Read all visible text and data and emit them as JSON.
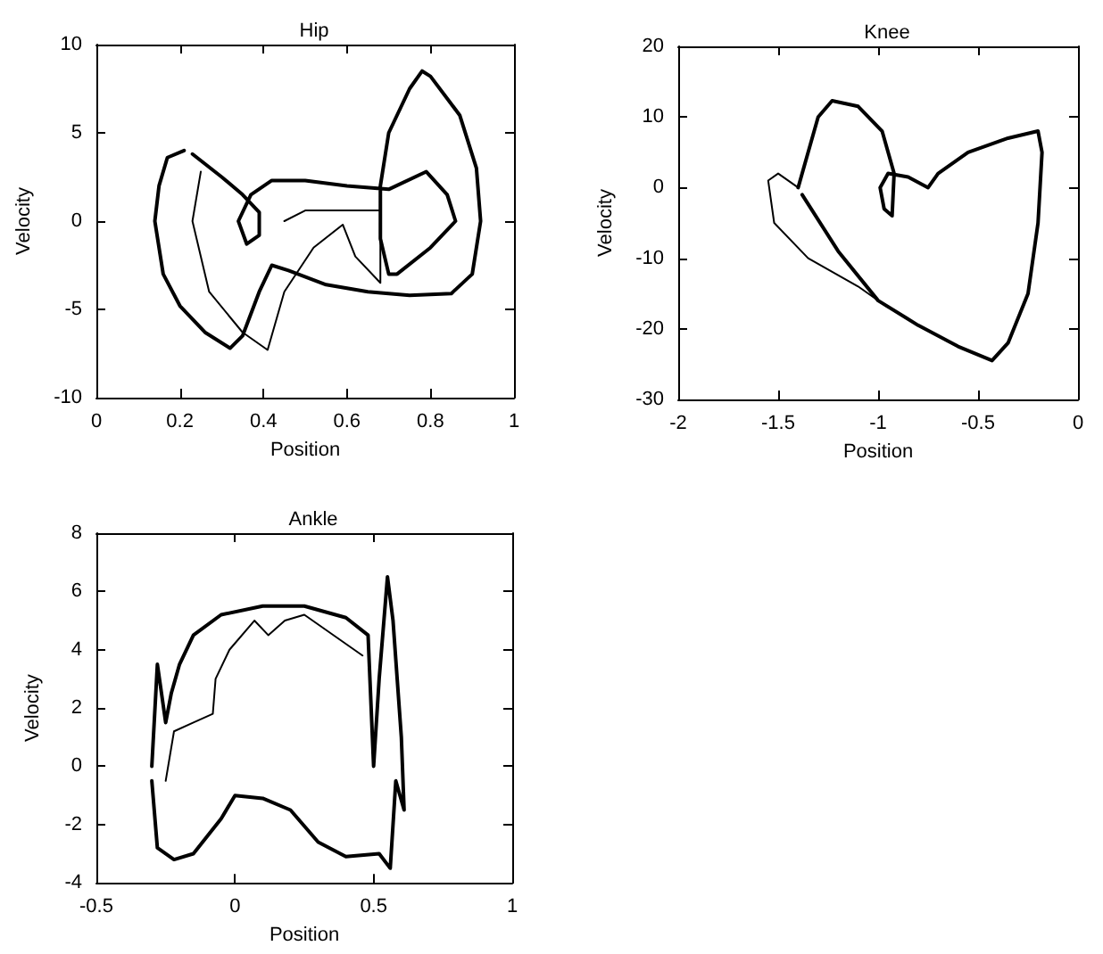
{
  "chart_data": [
    {
      "type": "line",
      "title": "Hip",
      "xlabel": "Position",
      "ylabel": "Velocity",
      "xlim": [
        0,
        1
      ],
      "xticks": [
        0,
        0.2,
        0.4,
        0.6,
        0.8,
        1
      ],
      "ylim": [
        -10,
        10
      ],
      "yticks": [
        -10,
        -5,
        0,
        5,
        10
      ],
      "grid": false,
      "marker": "none",
      "line_style": "solid",
      "series": [
        {
          "color": "#000000",
          "x": [
            0.21,
            0.17,
            0.15,
            0.14,
            0.16,
            0.2,
            0.26,
            0.32,
            0.35,
            0.39,
            0.42,
            0.46,
            0.55,
            0.65,
            0.75,
            0.85,
            0.9,
            0.92,
            0.91,
            0.87,
            0.8,
            0.78,
            0.75,
            0.7,
            0.68,
            0.68,
            0.7,
            0.72,
            0.8,
            0.86,
            0.84,
            0.79,
            0.7,
            0.6,
            0.5,
            0.42,
            0.37,
            0.34,
            0.36,
            0.39,
            0.39,
            0.35,
            0.3,
            0.23
          ],
          "values": [
            4,
            3.6,
            2,
            0,
            -3,
            -4.8,
            -6.3,
            -7.2,
            -6.5,
            -4,
            -2.5,
            -2.8,
            -3.6,
            -4,
            -4.2,
            -4.1,
            -3,
            0,
            3,
            6,
            8.2,
            8.5,
            7.5,
            5,
            2,
            -1,
            -3,
            -3,
            -1.5,
            0,
            1.5,
            2.8,
            1.8,
            2,
            2.3,
            2.3,
            1.5,
            0,
            -1.3,
            -0.8,
            0.5,
            1.5,
            2.5,
            3.8
          ]
        },
        {
          "color": "#000000",
          "x": [
            0.25,
            0.23,
            0.27,
            0.35,
            0.41,
            0.45,
            0.52,
            0.59,
            0.62,
            0.68,
            0.68,
            0.5,
            0.45
          ],
          "values": [
            2.8,
            0,
            -4,
            -6.3,
            -7.3,
            -4,
            -1.5,
            -0.2,
            -2,
            -3.5,
            0.6,
            0.6,
            0
          ]
        }
      ]
    },
    {
      "type": "line",
      "title": "Knee",
      "xlabel": "Position",
      "ylabel": "Velocity",
      "xlim": [
        -2,
        0
      ],
      "xticks": [
        -2,
        -1.5,
        -1,
        -0.5,
        0
      ],
      "ylim": [
        -30,
        20
      ],
      "yticks": [
        -30,
        -20,
        -10,
        0,
        10,
        20
      ],
      "grid": false,
      "marker": "none",
      "line_style": "solid",
      "series": [
        {
          "color": "#000000",
          "x": [
            -1.4,
            -1.35,
            -1.3,
            -1.23,
            -1.1,
            -0.98,
            -0.92,
            -0.93,
            -0.97,
            -0.99,
            -0.95,
            -0.85,
            -0.75,
            -0.7,
            -0.55,
            -0.35,
            -0.2,
            -0.18,
            -0.2,
            -0.25,
            -0.35,
            -0.43,
            -0.6,
            -0.8,
            -1,
            -1.2,
            -1.38
          ],
          "values": [
            0,
            5,
            10,
            12.3,
            11.5,
            8,
            2,
            -4,
            -3,
            0,
            2,
            1.5,
            0,
            2,
            5,
            7,
            8,
            5,
            -5,
            -15,
            -22,
            -24.5,
            -22.5,
            -19.5,
            -16,
            -9,
            -1
          ]
        },
        {
          "color": "#000000",
          "x": [
            -1.4,
            -1.5,
            -1.55,
            -1.52,
            -1.35,
            -1.1,
            -0.95
          ],
          "values": [
            0,
            2,
            1,
            -5,
            -10,
            -14,
            -17
          ]
        }
      ]
    },
    {
      "type": "line",
      "title": "Ankle",
      "xlabel": "Position",
      "ylabel": "Velocity",
      "xlim": [
        -0.5,
        1
      ],
      "xticks": [
        -0.5,
        0,
        0.5,
        1
      ],
      "ylim": [
        -4,
        8
      ],
      "yticks": [
        -4,
        -2,
        0,
        2,
        4,
        6,
        8
      ],
      "grid": false,
      "marker": "none",
      "line_style": "solid",
      "series": [
        {
          "color": "#000000",
          "x": [
            -0.3,
            -0.28,
            -0.25,
            -0.23,
            -0.2,
            -0.15,
            -0.05,
            0.1,
            0.25,
            0.4,
            0.48,
            0.5,
            0.52,
            0.55,
            0.57,
            0.6,
            0.61,
            0.58,
            0.56,
            0.52,
            0.4,
            0.3,
            0.2,
            0.1,
            0,
            -0.05,
            -0.15,
            -0.22,
            -0.28,
            -0.3
          ],
          "values": [
            0,
            3.5,
            1.5,
            2.5,
            3.5,
            4.5,
            5.2,
            5.5,
            5.5,
            5.1,
            4.5,
            0,
            3,
            6.5,
            5,
            1,
            -1.5,
            -0.5,
            -3.5,
            -3,
            -3.1,
            -2.6,
            -1.5,
            -1.1,
            -1,
            -1.8,
            -3,
            -3.2,
            -2.8,
            -0.5
          ]
        },
        {
          "color": "#000000",
          "x": [
            -0.25,
            -0.22,
            -0.15,
            -0.08,
            -0.07,
            -0.02,
            0.07,
            0.12,
            0.18,
            0.25,
            0.46
          ],
          "values": [
            -0.5,
            1.2,
            1.5,
            1.8,
            3,
            4,
            5,
            4.5,
            5,
            5.2,
            3.8
          ]
        }
      ]
    }
  ]
}
